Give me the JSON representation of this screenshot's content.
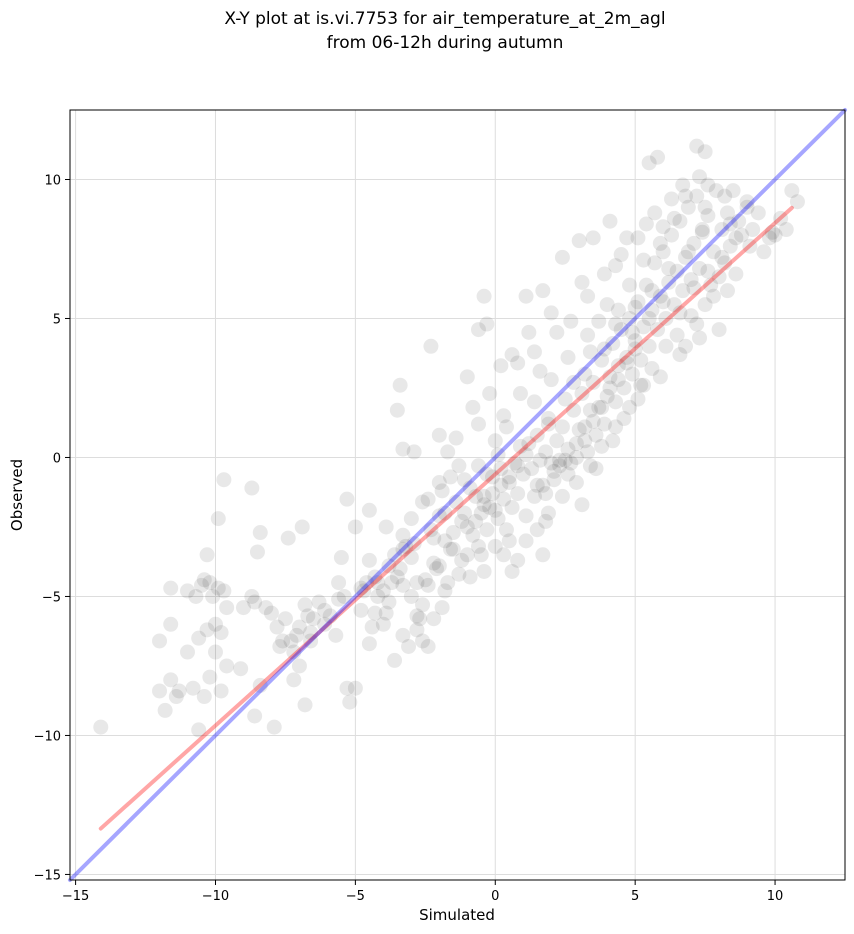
{
  "chart_data": {
    "type": "scatter",
    "title": [
      "X-Y plot at is.vi.7753 for air_temperature_at_2m_agl",
      "from 06-12h during autumn"
    ],
    "xlabel": "Simulated",
    "ylabel": "Observed",
    "xlim": [
      -15.2,
      12.5
    ],
    "ylim": [
      -15.2,
      12.5
    ],
    "xticks": [
      -15,
      -10,
      -5,
      0,
      5,
      10
    ],
    "yticks": [
      -15,
      -10,
      -5,
      0,
      5,
      10
    ],
    "xtick_labels": [
      "−15",
      "−10",
      "−5",
      "0",
      "5",
      "10"
    ],
    "ytick_labels": [
      "−15",
      "−10",
      "−5",
      "0",
      "5",
      "10"
    ],
    "grid": true,
    "points_color": "#000000",
    "points": [
      [
        -14.1,
        -9.7
      ],
      [
        -12.0,
        -8.4
      ],
      [
        -11.8,
        -9.1
      ],
      [
        -11.6,
        -8.0
      ],
      [
        -11.4,
        -8.6
      ],
      [
        -11.3,
        -8.4
      ],
      [
        -11.0,
        -7.0
      ],
      [
        -10.8,
        -8.3
      ],
      [
        -10.6,
        -9.8
      ],
      [
        -10.4,
        -8.6
      ],
      [
        -10.2,
        -7.9
      ],
      [
        -10.0,
        -7.0
      ],
      [
        -9.8,
        -8.4
      ],
      [
        -9.6,
        -7.5
      ],
      [
        -12.0,
        -6.6
      ],
      [
        -11.6,
        -6.0
      ],
      [
        -11.6,
        -4.7
      ],
      [
        -11.0,
        -4.8
      ],
      [
        -10.7,
        -5.0
      ],
      [
        -10.5,
        -4.6
      ],
      [
        -10.4,
        -4.4
      ],
      [
        -10.2,
        -4.5
      ],
      [
        -10.1,
        -5.0
      ],
      [
        -9.9,
        -4.7
      ],
      [
        -9.7,
        -4.8
      ],
      [
        -9.6,
        -5.4
      ],
      [
        -10.3,
        -6.2
      ],
      [
        -10.0,
        -6.0
      ],
      [
        -9.8,
        -6.3
      ],
      [
        -10.6,
        -6.5
      ],
      [
        -10.3,
        -3.5
      ],
      [
        -9.9,
        -2.2
      ],
      [
        -9.7,
        -0.8
      ],
      [
        -9.1,
        -7.6
      ],
      [
        -9.0,
        -5.4
      ],
      [
        -8.7,
        -5.0
      ],
      [
        -8.6,
        -5.2
      ],
      [
        -8.5,
        -3.4
      ],
      [
        -8.4,
        -2.7
      ],
      [
        -8.7,
        -1.1
      ],
      [
        -8.2,
        -5.4
      ],
      [
        -8.0,
        -5.6
      ],
      [
        -7.8,
        -6.1
      ],
      [
        -7.7,
        -6.8
      ],
      [
        -7.5,
        -5.8
      ],
      [
        -7.3,
        -6.6
      ],
      [
        -7.2,
        -8.0
      ],
      [
        -7.1,
        -6.4
      ],
      [
        -7.0,
        -6.1
      ],
      [
        -6.8,
        -5.3
      ],
      [
        -6.7,
        -5.7
      ],
      [
        -6.6,
        -6.3
      ],
      [
        -6.5,
        -5.8
      ],
      [
        -6.3,
        -5.2
      ],
      [
        -6.1,
        -5.5
      ],
      [
        -5.9,
        -5.7
      ],
      [
        -7.9,
        -9.7
      ],
      [
        -8.4,
        -8.2
      ],
      [
        -8.6,
        -9.3
      ],
      [
        -7.6,
        -6.6
      ],
      [
        -7.4,
        -2.9
      ],
      [
        -6.9,
        -2.5
      ],
      [
        -6.8,
        -8.9
      ],
      [
        -5.7,
        -6.4
      ],
      [
        -5.6,
        -4.5
      ],
      [
        -5.5,
        -3.6
      ],
      [
        -5.4,
        -5.0
      ],
      [
        -5.3,
        -1.5
      ],
      [
        -5.3,
        -8.3
      ],
      [
        -5.2,
        -8.8
      ],
      [
        -5.0,
        -2.5
      ],
      [
        -5.0,
        -8.3
      ],
      [
        -4.8,
        -5.5
      ],
      [
        -4.7,
        -4.8
      ],
      [
        -4.6,
        -4.5
      ],
      [
        -4.5,
        -6.7
      ],
      [
        -4.5,
        -1.9
      ],
      [
        -4.4,
        -6.1
      ],
      [
        -4.3,
        -5.6
      ],
      [
        -4.2,
        -5.0
      ],
      [
        -4.0,
        -4.8
      ],
      [
        -3.9,
        -5.6
      ],
      [
        -3.7,
        -4.5
      ],
      [
        -3.6,
        -3.5
      ],
      [
        -3.5,
        -4.3
      ],
      [
        -3.4,
        -4.0
      ],
      [
        -3.3,
        -2.8
      ],
      [
        -3.2,
        -3.2
      ],
      [
        -3.1,
        -6.8
      ],
      [
        -3.0,
        -3.6
      ],
      [
        -2.9,
        -3.1
      ],
      [
        -2.8,
        -5.7
      ],
      [
        -2.8,
        -6.2
      ],
      [
        -2.7,
        -5.8
      ],
      [
        -2.6,
        -6.6
      ],
      [
        -2.5,
        -4.4
      ],
      [
        -2.4,
        -1.5
      ],
      [
        -2.3,
        -2.6
      ],
      [
        -2.2,
        -2.9
      ],
      [
        -2.2,
        -3.8
      ],
      [
        -2.1,
        -4.0
      ],
      [
        -2.0,
        -2.1
      ],
      [
        -1.9,
        -1.2
      ],
      [
        -1.8,
        -2.0
      ],
      [
        -1.8,
        -3.0
      ],
      [
        -1.7,
        -4.5
      ],
      [
        -1.6,
        -0.7
      ],
      [
        -1.5,
        -3.3
      ],
      [
        -1.4,
        -1.6
      ],
      [
        -1.3,
        -4.2
      ],
      [
        -1.2,
        -2.3
      ],
      [
        -1.1,
        -0.8
      ],
      [
        -1.0,
        -2.5
      ],
      [
        -1.0,
        -3.5
      ],
      [
        -0.9,
        -1.1
      ],
      [
        -0.8,
        -2.8
      ],
      [
        -0.7,
        -1.4
      ],
      [
        -0.6,
        -3.2
      ],
      [
        -0.6,
        -0.3
      ],
      [
        -0.5,
        -2.0
      ],
      [
        -0.4,
        -1.4
      ],
      [
        -0.3,
        -0.6
      ],
      [
        -0.3,
        -2.6
      ],
      [
        -0.2,
        -1.8
      ],
      [
        -0.1,
        -0.7
      ],
      [
        0.0,
        -1.9
      ],
      [
        0.1,
        -2.2
      ],
      [
        0.2,
        -0.4
      ],
      [
        0.3,
        -1.5
      ],
      [
        0.4,
        -2.6
      ],
      [
        0.5,
        -0.9
      ],
      [
        0.6,
        -1.8
      ],
      [
        0.7,
        -0.2
      ],
      [
        0.8,
        -1.3
      ],
      [
        0.9,
        0.4
      ],
      [
        1.0,
        -0.6
      ],
      [
        1.1,
        -2.1
      ],
      [
        1.2,
        0.5
      ],
      [
        1.3,
        -0.4
      ],
      [
        1.4,
        -1.4
      ],
      [
        1.5,
        0.8
      ],
      [
        1.6,
        -0.1
      ],
      [
        1.7,
        -1.0
      ],
      [
        1.8,
        0.2
      ],
      [
        1.9,
        1.4
      ],
      [
        2.0,
        -0.2
      ],
      [
        2.1,
        -0.5
      ],
      [
        2.2,
        0.6
      ],
      [
        2.3,
        -0.1
      ],
      [
        2.4,
        1.1
      ],
      [
        2.5,
        -0.1
      ],
      [
        2.6,
        0.3
      ],
      [
        2.7,
        -0.2
      ],
      [
        2.8,
        1.7
      ],
      [
        2.9,
        0.5
      ],
      [
        3.0,
        1.0
      ],
      [
        3.1,
        2.3
      ],
      [
        3.2,
        1.1
      ],
      [
        3.3,
        0.2
      ],
      [
        3.4,
        1.7
      ],
      [
        3.5,
        2.7
      ],
      [
        3.6,
        0.8
      ],
      [
        3.7,
        1.8
      ],
      [
        3.8,
        3.5
      ],
      [
        3.9,
        1.2
      ],
      [
        4.0,
        2.2
      ],
      [
        4.1,
        2.9
      ],
      [
        4.2,
        4.1
      ],
      [
        4.3,
        2.0
      ],
      [
        4.4,
        3.3
      ],
      [
        4.5,
        4.6
      ],
      [
        4.6,
        2.5
      ],
      [
        4.7,
        3.6
      ],
      [
        4.8,
        5.0
      ],
      [
        4.9,
        3.0
      ],
      [
        5.0,
        4.2
      ],
      [
        5.1,
        5.6
      ],
      [
        5.2,
        3.5
      ],
      [
        5.3,
        4.7
      ],
      [
        5.4,
        6.2
      ],
      [
        5.5,
        4.0
      ],
      [
        5.6,
        5.3
      ],
      [
        5.7,
        7.0
      ],
      [
        5.8,
        4.6
      ],
      [
        5.9,
        5.8
      ],
      [
        6.0,
        7.4
      ],
      [
        6.1,
        5.0
      ],
      [
        6.2,
        6.3
      ],
      [
        6.3,
        8.0
      ],
      [
        6.4,
        5.5
      ],
      [
        6.5,
        6.7
      ],
      [
        6.6,
        8.5
      ],
      [
        6.7,
        6.0
      ],
      [
        6.8,
        7.2
      ],
      [
        6.9,
        9.0
      ],
      [
        7.0,
        6.4
      ],
      [
        7.1,
        7.7
      ],
      [
        7.2,
        9.4
      ],
      [
        7.3,
        6.8
      ],
      [
        7.4,
        8.1
      ],
      [
        7.5,
        5.5
      ],
      [
        7.6,
        8.7
      ],
      [
        7.7,
        6.2
      ],
      [
        7.8,
        7.4
      ],
      [
        7.9,
        9.6
      ],
      [
        8.0,
        6.5
      ],
      [
        8.1,
        8.2
      ],
      [
        8.2,
        7.0
      ],
      [
        8.3,
        8.8
      ],
      [
        8.4,
        7.6
      ],
      [
        8.5,
        9.6
      ],
      [
        8.6,
        7.9
      ],
      [
        8.7,
        8.5
      ],
      [
        8.8,
        8.0
      ],
      [
        9.0,
        9.0
      ],
      [
        9.2,
        8.2
      ],
      [
        9.4,
        8.8
      ],
      [
        9.6,
        7.4
      ],
      [
        9.8,
        7.9
      ],
      [
        10.0,
        8.0
      ],
      [
        10.2,
        8.6
      ],
      [
        10.4,
        8.2
      ],
      [
        10.6,
        9.6
      ],
      [
        10.8,
        9.2
      ],
      [
        5.5,
        10.6
      ],
      [
        5.8,
        10.8
      ],
      [
        7.2,
        11.2
      ],
      [
        7.5,
        11.0
      ],
      [
        7.3,
        10.1
      ],
      [
        4.1,
        8.5
      ],
      [
        3.0,
        7.8
      ],
      [
        2.4,
        7.2
      ],
      [
        -0.4,
        5.8
      ],
      [
        -0.6,
        4.6
      ],
      [
        -0.3,
        4.8
      ],
      [
        1.1,
        5.8
      ],
      [
        1.7,
        6.0
      ],
      [
        -2.3,
        4.0
      ],
      [
        -3.4,
        2.6
      ],
      [
        -3.5,
        1.7
      ],
      [
        -3.3,
        0.3
      ],
      [
        -2.9,
        0.2
      ],
      [
        -1.0,
        2.9
      ],
      [
        -0.8,
        1.8
      ],
      [
        0.2,
        3.3
      ],
      [
        0.8,
        3.4
      ],
      [
        -2.0,
        0.8
      ],
      [
        -1.4,
        0.7
      ],
      [
        0.3,
        -3.5
      ],
      [
        0.6,
        -4.1
      ],
      [
        1.7,
        -3.5
      ],
      [
        1.8,
        -2.3
      ],
      [
        3.1,
        -1.7
      ],
      [
        -0.4,
        -4.1
      ],
      [
        -0.9,
        -4.3
      ],
      [
        -1.8,
        -4.8
      ],
      [
        -2.2,
        -5.8
      ],
      [
        -2.6,
        -5.3
      ],
      [
        -3.3,
        -6.4
      ],
      [
        -3.6,
        -7.3
      ],
      [
        -4.0,
        -6.0
      ],
      [
        0.1,
        0.1
      ],
      [
        0.4,
        1.1
      ],
      [
        1.4,
        2.0
      ],
      [
        2.0,
        2.8
      ],
      [
        2.6,
        3.6
      ],
      [
        3.3,
        4.4
      ],
      [
        3.7,
        4.9
      ],
      [
        4.4,
        5.3
      ],
      [
        4.8,
        6.2
      ],
      [
        5.3,
        7.1
      ],
      [
        5.9,
        7.7
      ],
      [
        6.4,
        8.6
      ],
      [
        6.8,
        9.4
      ],
      [
        7.5,
        9.0
      ],
      [
        8.2,
        9.4
      ],
      [
        9.0,
        9.2
      ],
      [
        2.2,
        4.5
      ],
      [
        1.4,
        3.8
      ],
      [
        0.9,
        2.3
      ],
      [
        1.9,
        1.2
      ],
      [
        2.5,
        2.1
      ],
      [
        3.2,
        3.0
      ],
      [
        3.9,
        3.9
      ],
      [
        4.3,
        4.8
      ],
      [
        5.0,
        5.4
      ],
      [
        5.6,
        6.0
      ],
      [
        6.2,
        6.8
      ],
      [
        6.9,
        7.4
      ],
      [
        7.4,
        8.2
      ],
      [
        3.6,
        -0.4
      ],
      [
        4.2,
        0.6
      ],
      [
        4.6,
        1.4
      ],
      [
        5.2,
        2.6
      ],
      [
        5.6,
        3.2
      ],
      [
        6.1,
        4.0
      ],
      [
        6.5,
        4.4
      ],
      [
        7.0,
        5.1
      ],
      [
        7.8,
        5.8
      ],
      [
        8.3,
        6.0
      ],
      [
        8.0,
        4.6
      ],
      [
        7.2,
        4.8
      ],
      [
        6.6,
        3.7
      ],
      [
        5.1,
        2.1
      ],
      [
        0.5,
        -3.0
      ],
      [
        0.0,
        -3.2
      ],
      [
        -0.5,
        -3.5
      ],
      [
        -1.2,
        -3.7
      ],
      [
        -1.6,
        -3.3
      ],
      [
        -2.0,
        -3.9
      ],
      [
        -2.4,
        -4.6
      ],
      [
        -2.8,
        -4.5
      ],
      [
        -3.3,
        -4.6
      ],
      [
        -3.8,
        -5.2
      ],
      [
        -4.2,
        -4.5
      ],
      [
        1.5,
        -1.0
      ],
      [
        1.8,
        -1.3
      ],
      [
        2.1,
        -0.8
      ],
      [
        2.3,
        -0.3
      ],
      [
        2.6,
        -0.6
      ],
      [
        2.9,
        0.0
      ],
      [
        3.2,
        0.6
      ],
      [
        3.5,
        1.3
      ],
      [
        3.8,
        1.8
      ],
      [
        4.1,
        2.5
      ],
      [
        4.4,
        2.8
      ],
      [
        4.7,
        3.4
      ],
      [
        5.0,
        3.9
      ],
      [
        0.2,
        -1.0
      ],
      [
        0.5,
        -0.7
      ],
      [
        0.8,
        -0.3
      ],
      [
        1.1,
        0.1
      ],
      [
        -0.1,
        -1.3
      ],
      [
        -0.4,
        -1.7
      ],
      [
        -0.7,
        -2.3
      ],
      [
        -1.1,
        -2.0
      ],
      [
        0.0,
        0.6
      ],
      [
        0.3,
        1.5
      ],
      [
        -0.2,
        2.3
      ],
      [
        -0.6,
        1.2
      ],
      [
        -1.3,
        -0.3
      ],
      [
        -1.7,
        0.2
      ],
      [
        -2.0,
        -0.9
      ],
      [
        -2.6,
        -1.6
      ],
      [
        -3.0,
        -2.2
      ],
      [
        -3.3,
        -3.3
      ],
      [
        -3.8,
        -3.9
      ],
      [
        -4.3,
        -4.3
      ],
      [
        -4.8,
        -4.7
      ],
      [
        -5.6,
        -5.1
      ],
      [
        -6.1,
        -6.0
      ],
      [
        -6.6,
        -6.6
      ],
      [
        -7.2,
        -7.0
      ],
      [
        -7.0,
        -7.5
      ],
      [
        -3.9,
        -2.5
      ],
      [
        -4.5,
        -3.7
      ],
      [
        -3.0,
        -5.0
      ],
      [
        -2.4,
        -6.8
      ],
      [
        -1.9,
        -5.4
      ],
      [
        -1.5,
        -2.7
      ],
      [
        2.7,
        4.9
      ],
      [
        3.3,
        5.8
      ],
      [
        3.9,
        6.6
      ],
      [
        4.5,
        7.3
      ],
      [
        5.1,
        7.9
      ],
      [
        5.7,
        8.8
      ],
      [
        6.3,
        9.3
      ],
      [
        3.5,
        7.9
      ],
      [
        4.7,
        7.9
      ],
      [
        5.4,
        8.4
      ],
      [
        6.0,
        8.3
      ],
      [
        6.7,
        9.8
      ],
      [
        7.6,
        9.8
      ],
      [
        8.4,
        8.4
      ],
      [
        9.1,
        7.6
      ],
      [
        9.9,
        8.1
      ],
      [
        4.0,
        5.5
      ],
      [
        4.3,
        6.9
      ],
      [
        3.1,
        6.3
      ],
      [
        2.0,
        5.2
      ],
      [
        1.2,
        4.5
      ],
      [
        0.6,
        3.7
      ],
      [
        1.6,
        3.1
      ],
      [
        2.8,
        2.7
      ],
      [
        3.4,
        3.8
      ],
      [
        4.9,
        4.5
      ],
      [
        5.5,
        5.0
      ],
      [
        6.0,
        5.6
      ],
      [
        6.6,
        5.2
      ],
      [
        7.1,
        6.1
      ],
      [
        7.6,
        6.7
      ],
      [
        8.1,
        7.2
      ],
      [
        8.6,
        6.6
      ],
      [
        7.3,
        4.3
      ],
      [
        6.8,
        4.0
      ],
      [
        5.9,
        2.9
      ],
      [
        5.3,
        2.6
      ],
      [
        4.8,
        1.8
      ],
      [
        4.3,
        1.1
      ],
      [
        3.8,
        0.4
      ],
      [
        3.4,
        -0.3
      ],
      [
        2.9,
        -0.9
      ],
      [
        2.4,
        -1.4
      ],
      [
        1.9,
        -2.0
      ],
      [
        1.5,
        -2.6
      ],
      [
        1.1,
        -3.0
      ],
      [
        0.8,
        -3.7
      ]
    ],
    "series": [
      {
        "kind": "regression",
        "color": "#ff0000",
        "x": [
          -14.1,
          10.6
        ],
        "y": [
          -13.35,
          8.98
        ]
      },
      {
        "kind": "one-to-one",
        "color": "#0000ff",
        "x": [
          -15.2,
          12.5
        ],
        "y": [
          -15.2,
          12.5
        ]
      }
    ]
  }
}
